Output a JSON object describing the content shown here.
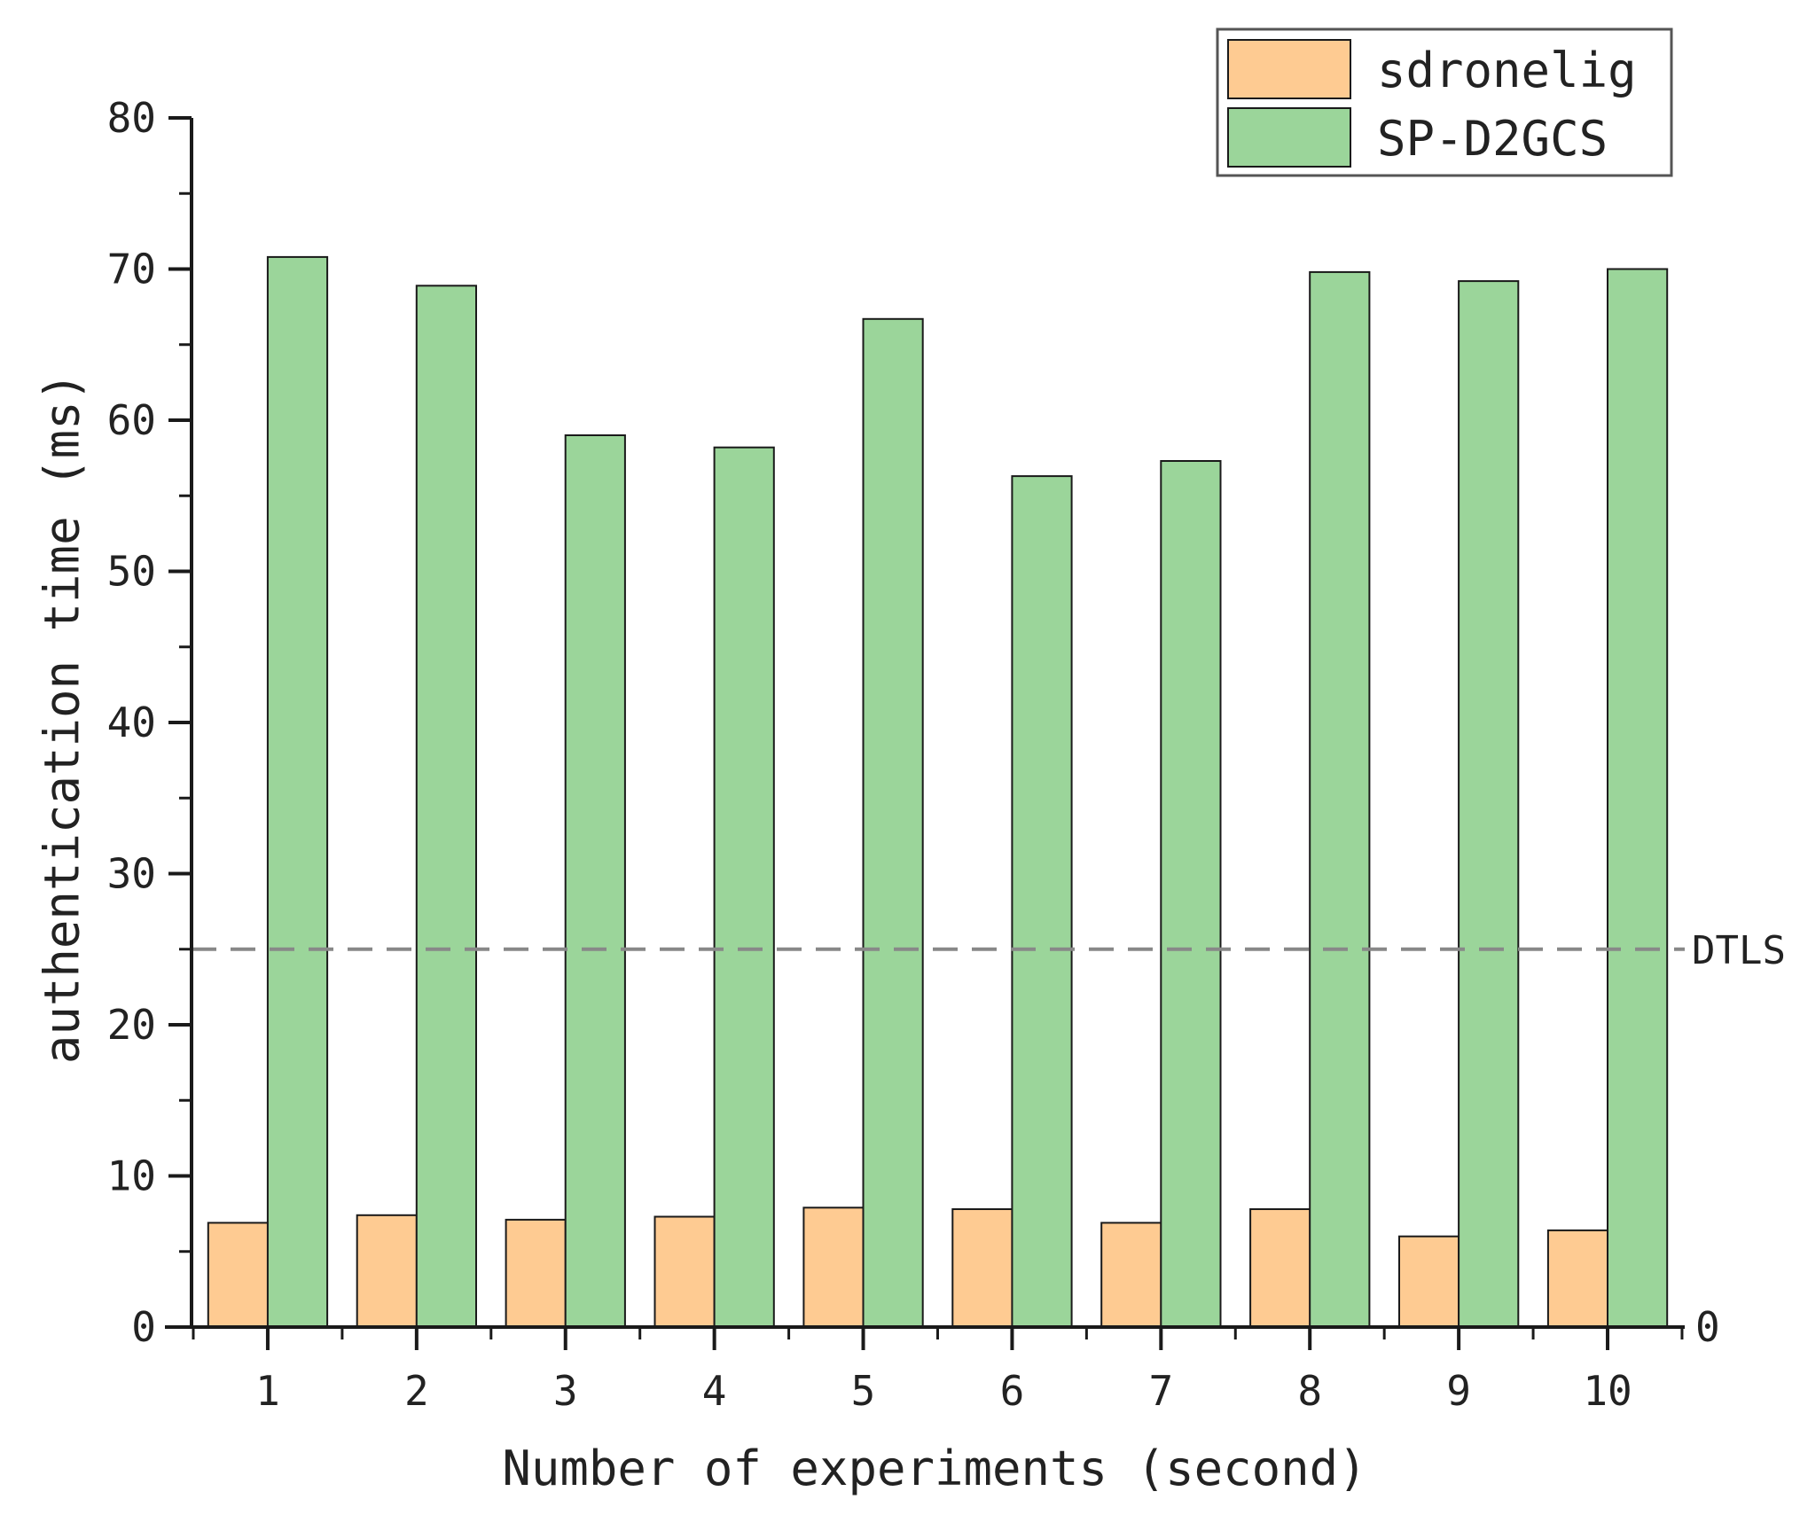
{
  "chart_data": {
    "type": "bar",
    "xlabel": "Number of experiments (second)",
    "ylabel": "authentication time (ms)",
    "categories": [
      "1",
      "2",
      "3",
      "4",
      "5",
      "6",
      "7",
      "8",
      "9",
      "10"
    ],
    "ylim": [
      0,
      80
    ],
    "yticks": [
      "0",
      "10",
      "20",
      "30",
      "40",
      "50",
      "60",
      "70",
      "80"
    ],
    "right_axis_zero_label": "0",
    "series": [
      {
        "name": "sdronelig",
        "color": "#fecb92",
        "values": [
          6.9,
          7.4,
          7.1,
          7.3,
          7.9,
          7.8,
          6.9,
          7.8,
          6.0,
          6.4
        ]
      },
      {
        "name": "SP-D2GCS",
        "color": "#9bd59a",
        "values": [
          70.8,
          68.9,
          59.0,
          58.2,
          66.7,
          56.3,
          57.3,
          69.8,
          69.2,
          70.0
        ]
      }
    ],
    "reference_line": {
      "label": "DTLS",
      "value": 25,
      "style": "dashed",
      "color": "#888888"
    },
    "legend_position": "top-right",
    "grid": false
  }
}
